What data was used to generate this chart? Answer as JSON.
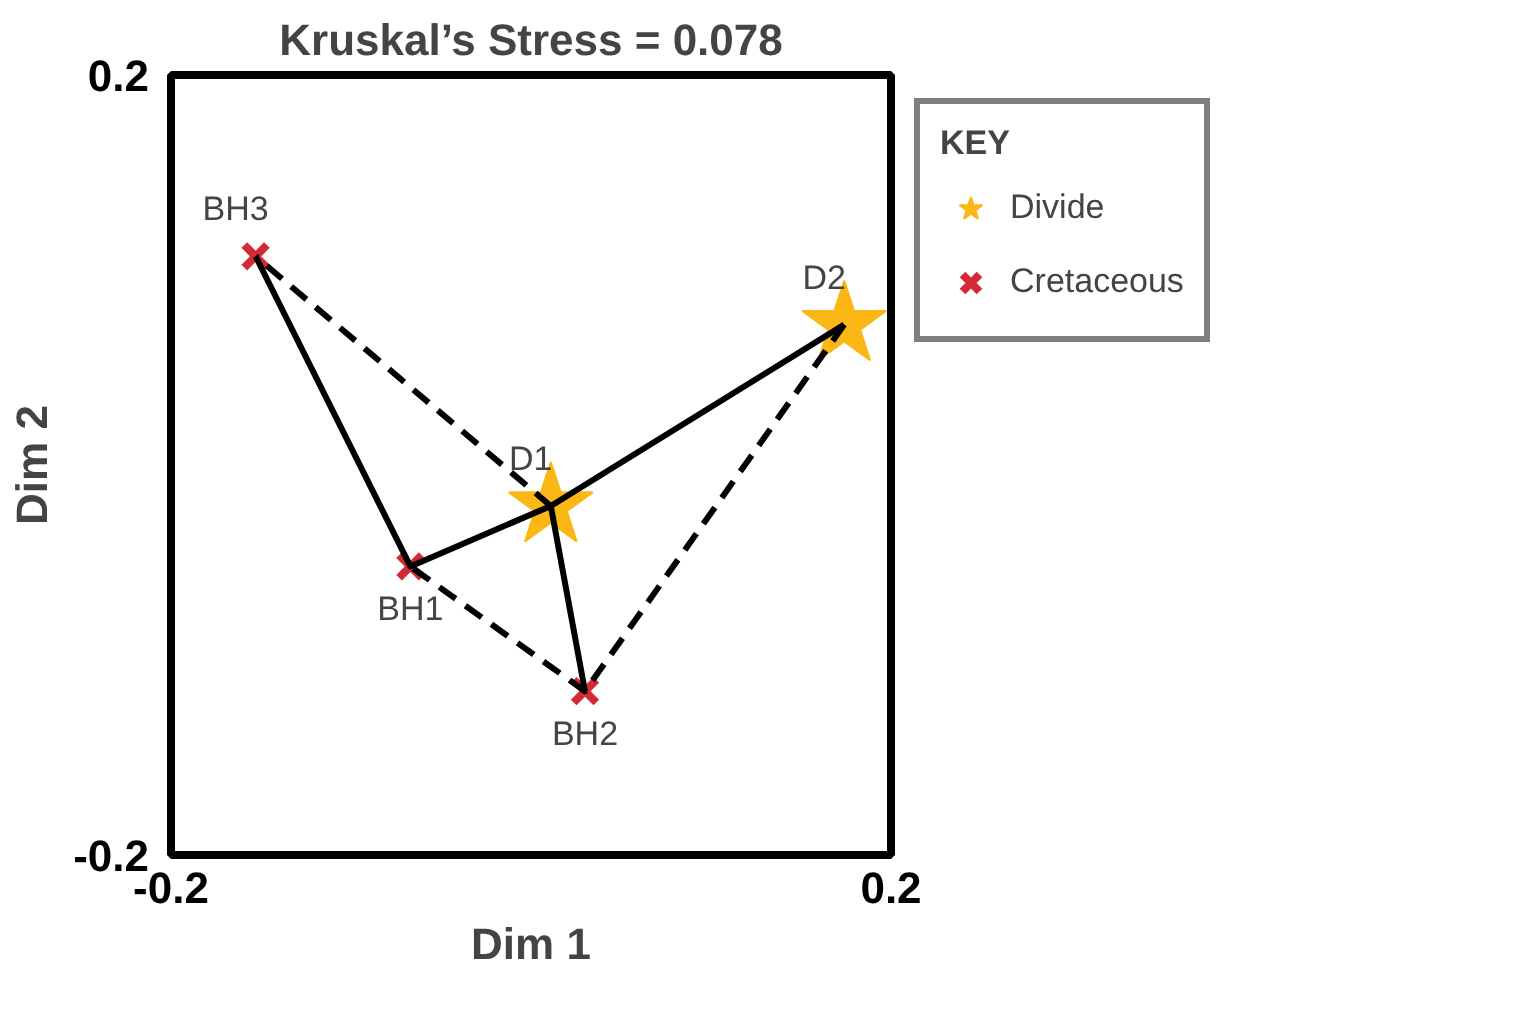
{
  "chart_data": {
    "type": "scatter",
    "title": "Kruskal’s Stress = 0.078",
    "xlabel": "Dim 1",
    "ylabel": "Dim 2",
    "legend_title": "KEY",
    "xlim": [
      -0.2,
      0.2
    ],
    "ylim": [
      -0.2,
      0.2
    ],
    "xticks": [
      -0.2,
      0.2
    ],
    "yticks": [
      -0.2,
      0.2
    ],
    "legend": "top right",
    "series": [
      {
        "type": "line",
        "color": "#000000",
        "line_style": "solid",
        "x": [
          -0.153,
          -0.067,
          0.011,
          0.174
        ],
        "values": [
          0.107,
          -0.052,
          -0.021,
          0.072
        ]
      },
      {
        "type": "line",
        "color": "#000000",
        "line_style": "solid",
        "x": [
          0.011,
          0.03
        ],
        "values": [
          -0.021,
          -0.116
        ]
      },
      {
        "type": "line",
        "color": "#000000",
        "line_style": "dashed",
        "x": [
          0.011,
          -0.153
        ],
        "values": [
          -0.021,
          0.107
        ]
      },
      {
        "type": "line",
        "color": "#000000",
        "line_style": "dashed",
        "x": [
          0.174,
          0.03,
          -0.067
        ],
        "values": [
          0.072,
          -0.116,
          -0.052
        ]
      },
      {
        "name": "Divide",
        "color": "#fbb715",
        "marker": "star",
        "x": [
          0.011,
          0.174
        ],
        "values": [
          -0.021,
          0.072
        ]
      },
      {
        "name": "Cretaceous",
        "color": "#d22b36",
        "marker": "cross",
        "x": [
          -0.153,
          -0.067,
          0.03
        ],
        "values": [
          0.107,
          -0.052,
          -0.116
        ]
      }
    ],
    "annotations": [
      {
        "text": "BH3",
        "x": -0.153,
        "y": 0.107
      },
      {
        "text": "BH1",
        "x": -0.067,
        "y": -0.052
      },
      {
        "text": "BH2",
        "x": 0.03,
        "y": -0.116
      },
      {
        "text": "D1",
        "x": 0.011,
        "y": -0.021
      },
      {
        "text": "D2",
        "x": 0.174,
        "y": 0.072
      }
    ]
  }
}
